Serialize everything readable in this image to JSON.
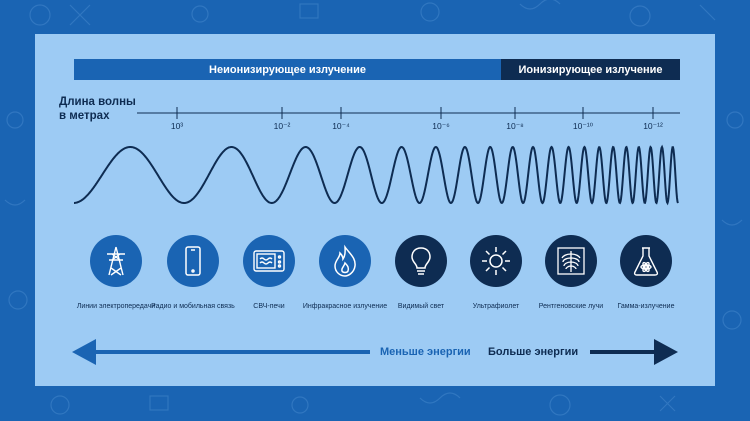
{
  "bands": {
    "nonionizing": "Неионизирующее излучение",
    "ionizing": "Ионизирующее излучение"
  },
  "axis": {
    "label_line1": "Длина волны",
    "label_line2": "в метрах",
    "ticks": [
      {
        "label": "10³"
      },
      {
        "label": "10⁻²"
      },
      {
        "label": "10⁻⁴"
      },
      {
        "label": "10⁻⁶"
      },
      {
        "label": "10⁻⁸"
      },
      {
        "label": "10⁻¹⁰"
      },
      {
        "label": "10⁻¹²"
      }
    ]
  },
  "sources": [
    {
      "label": "Линии электропередачи",
      "icon": "power-line-icon"
    },
    {
      "label": "Радио и мобильная связь",
      "icon": "phone-icon"
    },
    {
      "label": "СВЧ-печи",
      "icon": "microwave-icon"
    },
    {
      "label": "Инфракрасное излучение",
      "icon": "flame-icon"
    },
    {
      "label": "Видимый свет",
      "icon": "lightbulb-icon"
    },
    {
      "label": "Ультрафиолет",
      "icon": "sun-icon"
    },
    {
      "label": "Рентгеновские лучи",
      "icon": "xray-ribcage-icon"
    },
    {
      "label": "Гамма-излучение",
      "icon": "radioactive-flask-icon"
    }
  ],
  "energy": {
    "less": "Меньше энергии",
    "more": "Больше энергии"
  },
  "colors": {
    "background": "#1a64b3",
    "panel": "#9dcbf4",
    "dark_navy": "#0e2c52",
    "mid_blue": "#1a64b3"
  }
}
